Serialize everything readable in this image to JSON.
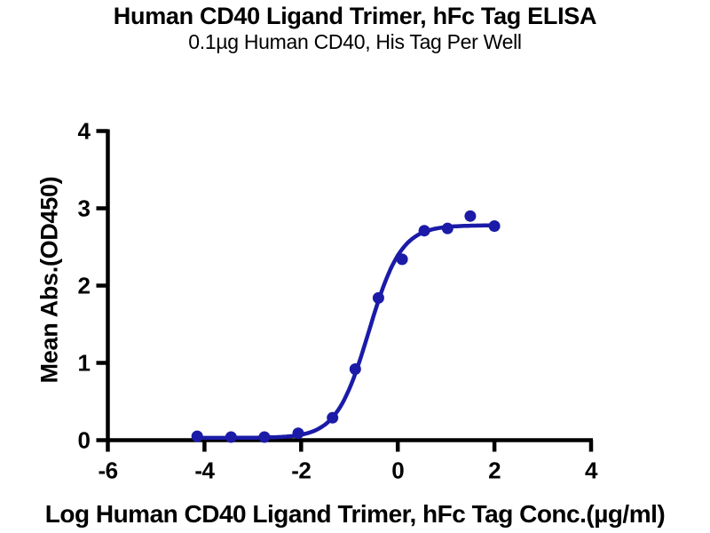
{
  "chart_data": {
    "type": "scatter",
    "subtype": "sigmoidal-dose-response-4PL-fit",
    "title": "Human CD40 Ligand Trimer, hFc Tag ELISA",
    "subtitle": "0.1µg Human CD40, His Tag Per Well",
    "xlabel": "Log Human CD40 Ligand Trimer, hFc Tag Conc.(µg/ml)",
    "ylabel": "Mean Abs.(OD450)",
    "xlim": [
      -6,
      4
    ],
    "ylim": [
      0,
      4
    ],
    "xticks": [
      -6,
      -4,
      -2,
      0,
      2,
      4
    ],
    "yticks": [
      0,
      1,
      2,
      3,
      4
    ],
    "grid": false,
    "legend": false,
    "points": [
      {
        "x": -4.15,
        "y": 0.05
      },
      {
        "x": -3.45,
        "y": 0.04
      },
      {
        "x": -2.76,
        "y": 0.04
      },
      {
        "x": -2.06,
        "y": 0.09
      },
      {
        "x": -1.35,
        "y": 0.29
      },
      {
        "x": -0.88,
        "y": 0.92
      },
      {
        "x": -0.4,
        "y": 1.84
      },
      {
        "x": 0.09,
        "y": 2.34
      },
      {
        "x": 0.55,
        "y": 2.71
      },
      {
        "x": 1.03,
        "y": 2.74
      },
      {
        "x": 1.5,
        "y": 2.9
      },
      {
        "x": 2.0,
        "y": 2.77
      }
    ],
    "fit": {
      "model": "4PL",
      "bottom": 0.03,
      "top": 2.78,
      "logEC50": -0.6,
      "hillslope": 1.3,
      "x_range": [
        -4.15,
        2.0
      ]
    },
    "colors": {
      "curve": "#1b1ba8",
      "axis": "#000000",
      "background": "#ffffff"
    }
  }
}
